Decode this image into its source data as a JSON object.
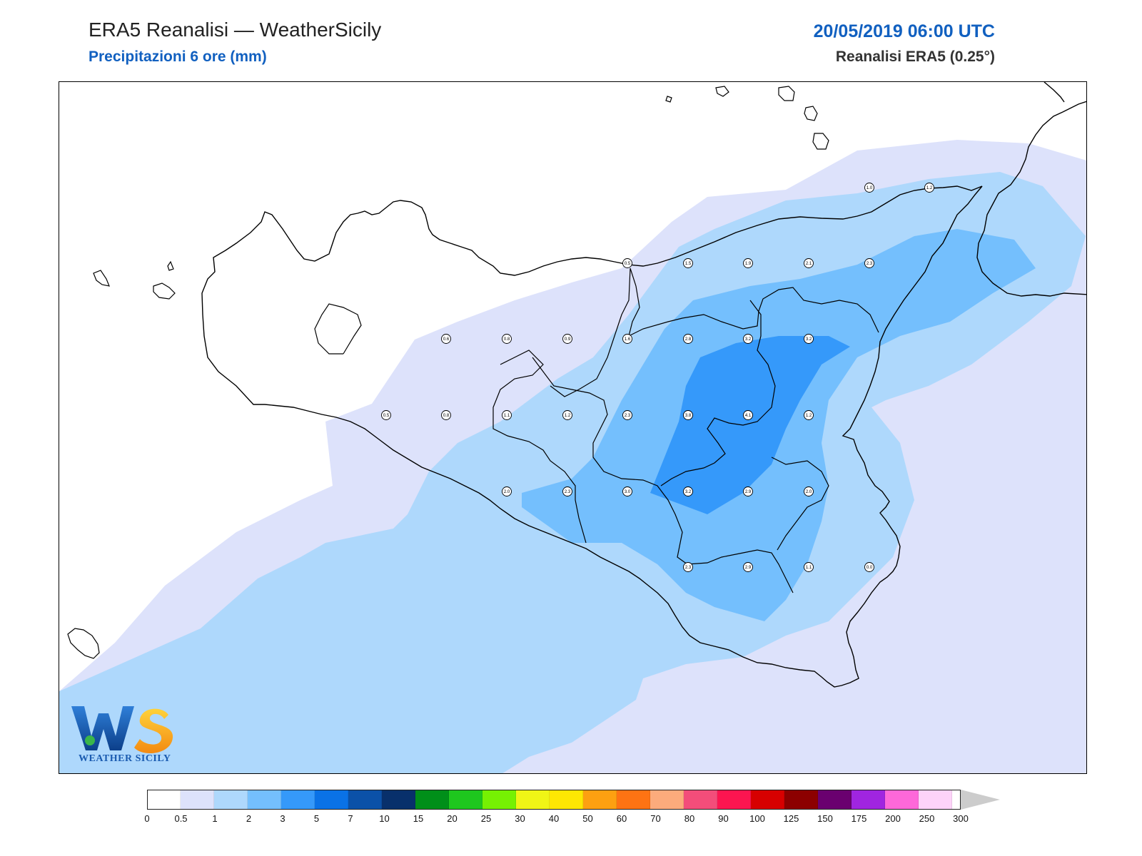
{
  "header": {
    "title": "ERA5 Reanalisi — WeatherSicily",
    "subtitle": "Precipitazioni 6 ore (mm)",
    "datetime": "20/05/2019 06:00 UTC",
    "source": "Reanalisi ERA5 (0.25°)"
  },
  "logo": {
    "letters": "WS",
    "text": "WEATHER SICILY"
  },
  "colorbar": {
    "ticks": [
      "0",
      "0.5",
      "1",
      "2",
      "3",
      "5",
      "7",
      "10",
      "15",
      "20",
      "25",
      "30",
      "40",
      "50",
      "60",
      "70",
      "80",
      "90",
      "100",
      "125",
      "150",
      "175",
      "200",
      "250",
      "300"
    ],
    "colors": [
      "#ffffff",
      "#dde2fb",
      "#aed8fc",
      "#74bffd",
      "#3599fa",
      "#0a72e6",
      "#0b51a8",
      "#08306b",
      "#008f19",
      "#1ec71e",
      "#76f103",
      "#f0f516",
      "#fee703",
      "#fda011",
      "#fe7313",
      "#fcab7c",
      "#f34d7a",
      "#fc1550",
      "#d70000",
      "#8c0000",
      "#6a006f",
      "#a025e0",
      "#fe68d9",
      "#fdd3f9"
    ],
    "overflow_color": "#cccccc"
  },
  "stations": [
    {
      "v": "1.0",
      "gx": 1217,
      "gy": 262
    },
    {
      "v": "1.2",
      "gx": 1301,
      "gy": 262
    },
    {
      "v": "0.5",
      "gx": 878,
      "gy": 368
    },
    {
      "v": "1.5",
      "gx": 963,
      "gy": 368
    },
    {
      "v": "1.9",
      "gx": 1047,
      "gy": 368
    },
    {
      "v": "2.1",
      "gx": 1132,
      "gy": 368
    },
    {
      "v": "2.3",
      "gx": 1217,
      "gy": 368
    },
    {
      "v": "0.6",
      "gx": 624,
      "gy": 474
    },
    {
      "v": "0.8",
      "gx": 709,
      "gy": 474
    },
    {
      "v": "0.9",
      "gx": 794,
      "gy": 474
    },
    {
      "v": "1.6",
      "gx": 878,
      "gy": 474
    },
    {
      "v": "2.8",
      "gx": 963,
      "gy": 474
    },
    {
      "v": "3.2",
      "gx": 1047,
      "gy": 474
    },
    {
      "v": "3.2",
      "gx": 1132,
      "gy": 474
    },
    {
      "v": "0.5",
      "gx": 540,
      "gy": 581
    },
    {
      "v": "0.8",
      "gx": 624,
      "gy": 581
    },
    {
      "v": "1.1",
      "gx": 709,
      "gy": 581
    },
    {
      "v": "1.2",
      "gx": 794,
      "gy": 581
    },
    {
      "v": "2.3",
      "gx": 878,
      "gy": 581
    },
    {
      "v": "3.8",
      "gx": 963,
      "gy": 581
    },
    {
      "v": "4.1",
      "gx": 1047,
      "gy": 581
    },
    {
      "v": "1.2",
      "gx": 1132,
      "gy": 581
    },
    {
      "v": "2.0",
      "gx": 709,
      "gy": 688
    },
    {
      "v": "2.3",
      "gx": 794,
      "gy": 688
    },
    {
      "v": "3.0",
      "gx": 878,
      "gy": 688
    },
    {
      "v": "3.2",
      "gx": 963,
      "gy": 688
    },
    {
      "v": "2.9",
      "gx": 1047,
      "gy": 688
    },
    {
      "v": "2.0",
      "gx": 1132,
      "gy": 688
    },
    {
      "v": "2.3",
      "gx": 963,
      "gy": 794
    },
    {
      "v": "2.9",
      "gx": 1047,
      "gy": 794
    },
    {
      "v": "1.1",
      "gx": 1132,
      "gy": 794
    },
    {
      "v": "0.0",
      "gx": 1217,
      "gy": 794
    }
  ]
}
